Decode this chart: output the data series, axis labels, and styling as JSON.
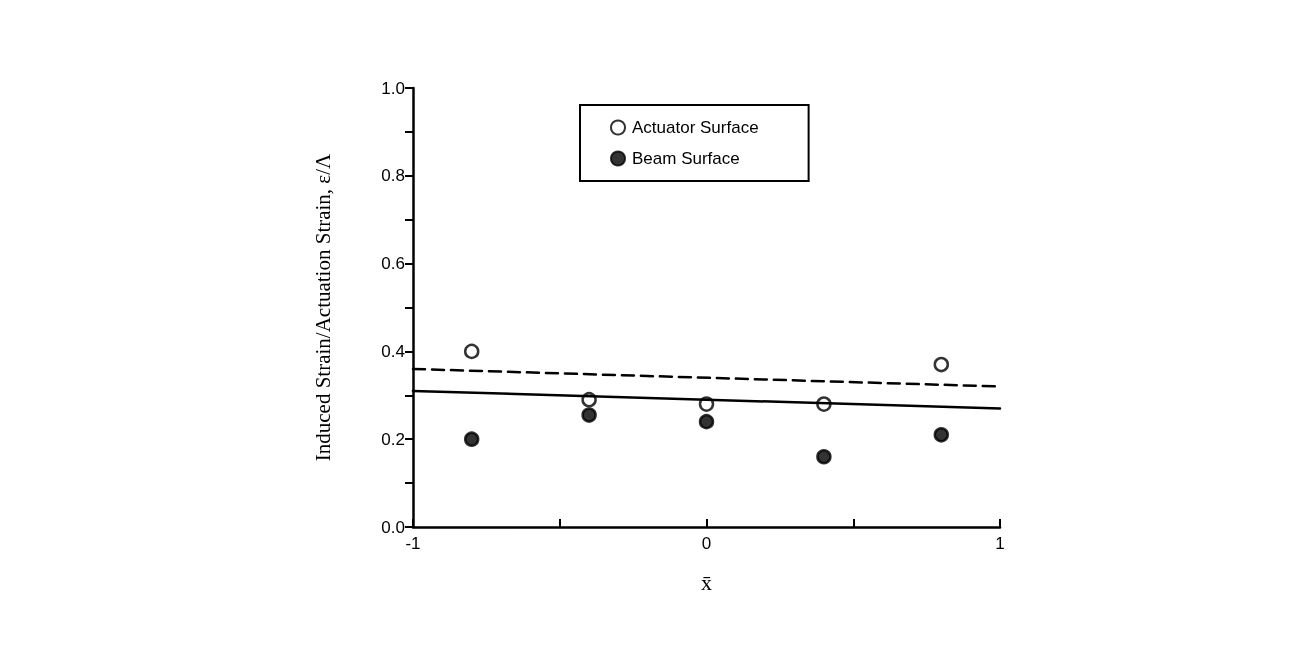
{
  "chart_data": {
    "type": "scatter",
    "xlabel": "x̄",
    "ylabel": "Induced Strain/Actuation Strain, ε/Λ",
    "xlim": [
      -1,
      1
    ],
    "xticks": [
      -1,
      {
        "value": -0.5,
        "label": null
      },
      0,
      {
        "value": 0.5,
        "label": null
      },
      1
    ],
    "ylim": [
      0,
      1
    ],
    "yticks": [
      {
        "value": 0,
        "label": "0.0"
      },
      {
        "value": 0.1,
        "label": null
      },
      0.2,
      {
        "value": 0.3,
        "label": null
      },
      0.4,
      {
        "value": 0.5,
        "label": null
      },
      0.6,
      {
        "value": 0.7,
        "label": null
      },
      0.8,
      {
        "value": 0.9,
        "label": null
      },
      {
        "value": 1,
        "label": "1.0"
      }
    ],
    "grid": false,
    "legend": "top",
    "marker": "circle",
    "series": [
      {
        "name": "Actuator Surface",
        "color": "#ffffff",
        "x": [
          -0.8,
          -0.4,
          0,
          0.4,
          0.8
        ],
        "values": [
          0.4,
          0.29,
          0.28,
          0.28,
          0.37
        ]
      },
      {
        "name": "Beam Surface",
        "color": "#000000",
        "x": [
          -0.8,
          -0.4,
          0,
          0.4,
          0.8
        ],
        "values": [
          0.2,
          0.255,
          0.24,
          0.16,
          0.21
        ]
      },
      {
        "type": "line",
        "color": "#000000",
        "line_style": "dashed",
        "marker": "none",
        "x": [
          -1,
          1
        ],
        "values": [
          0.36,
          0.32
        ]
      },
      {
        "type": "line",
        "color": "#000000",
        "line_style": "solid",
        "marker": "none",
        "x": [
          -1,
          1
        ],
        "values": [
          0.31,
          0.27
        ]
      }
    ]
  }
}
